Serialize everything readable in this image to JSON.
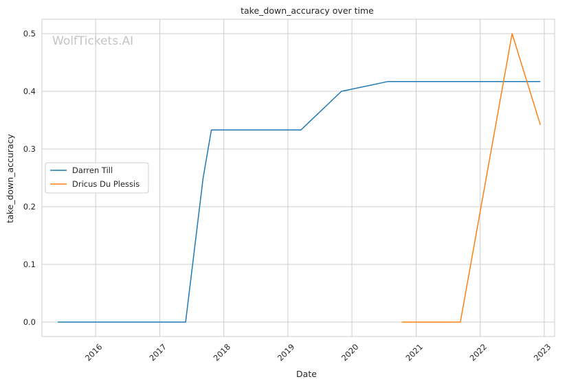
{
  "chart_data": {
    "type": "line",
    "title": "take_down_accuracy over time",
    "xlabel": "Date",
    "ylabel": "take_down_accuracy",
    "watermark": "WolfTickets.AI",
    "x_ticks": [
      "2016",
      "2017",
      "2018",
      "2019",
      "2020",
      "2021",
      "2022",
      "2023"
    ],
    "y_ticks": [
      "0.0",
      "0.1",
      "0.2",
      "0.3",
      "0.4",
      "0.5"
    ],
    "xlim": [
      "2015-03-01",
      "2023-03-01"
    ],
    "ylim": [
      -0.025,
      0.525
    ],
    "grid": true,
    "legend_position": "center-left",
    "series": [
      {
        "name": "Darren Till",
        "color": "#1f77b4",
        "points": [
          [
            "2015-05-30",
            0.0
          ],
          [
            "2016-05-08",
            0.0
          ],
          [
            "2017-05-28",
            0.0
          ],
          [
            "2017-09-05",
            0.25
          ],
          [
            "2017-10-22",
            0.333
          ],
          [
            "2018-05-27",
            0.333
          ],
          [
            "2019-03-16",
            0.333
          ],
          [
            "2019-11-02",
            0.4
          ],
          [
            "2020-07-25",
            0.417
          ],
          [
            "2021-10-01",
            0.417
          ],
          [
            "2022-12-10",
            0.417
          ]
        ]
      },
      {
        "name": "Dricus Du Plessis",
        "color": "#ff7f0e",
        "points": [
          [
            "2020-10-11",
            0.0
          ],
          [
            "2021-09-10",
            0.0
          ],
          [
            "2022-07-02",
            0.5
          ],
          [
            "2022-12-10",
            0.342
          ]
        ]
      }
    ]
  }
}
